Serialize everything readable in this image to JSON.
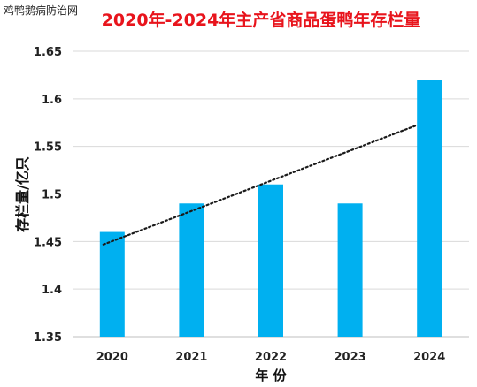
{
  "site_watermark": "鸡鸭鹅病防治网",
  "chart_data": {
    "type": "bar",
    "title": "2020年-2024年主产省商品蛋鸭年存栏量",
    "xlabel": "年 份",
    "ylabel": "存栏量/亿只",
    "categories": [
      "2020",
      "2021",
      "2022",
      "2023",
      "2024"
    ],
    "values": [
      1.46,
      1.49,
      1.51,
      1.49,
      1.62
    ],
    "ylim": [
      1.35,
      1.65
    ],
    "yticks": [
      "1.35",
      "1.4",
      "1.45",
      "1.5",
      "1.55",
      "1.6",
      "1.65"
    ],
    "trendline": {
      "type": "linear",
      "style": "dotted"
    },
    "grid": true,
    "legend": "none",
    "colors": {
      "bar": "#00b0f0",
      "title": "#e8141c",
      "trendline": "#1a1a1a",
      "grid": "#d9d9d9"
    }
  }
}
